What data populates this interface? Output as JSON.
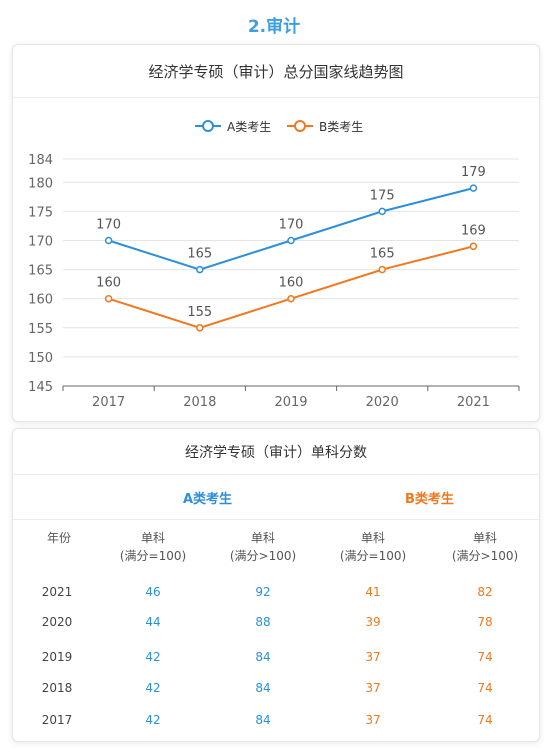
{
  "section_title": "2.审计",
  "chart_data": {
    "type": "line",
    "title": "经济学专硕（审计）总分国家线趋势图",
    "categories": [
      "2017",
      "2018",
      "2019",
      "2020",
      "2021"
    ],
    "series": [
      {
        "name": "A类考生",
        "values": [
          170,
          165,
          170,
          175,
          179
        ],
        "color": "#2d8fd9"
      },
      {
        "name": "B类考生",
        "values": [
          160,
          155,
          160,
          165,
          169
        ],
        "color": "#f0781e"
      }
    ],
    "yticks": [
      145,
      150,
      155,
      160,
      165,
      170,
      175,
      180,
      184
    ],
    "ylim": [
      145,
      184
    ],
    "legend_position": "top-center",
    "grid": true
  },
  "table": {
    "title": "经济学专硕（审计）单科分数",
    "group_a": "A类考生",
    "group_b": "B类考生",
    "year_header": "年份",
    "subject_label": "单科",
    "full_100": "(满分=100)",
    "full_over_100": "(满分>100)",
    "rows": [
      {
        "year": "2021",
        "a1": "46",
        "a2": "92",
        "b1": "41",
        "b2": "82"
      },
      {
        "year": "2020",
        "a1": "44",
        "a2": "88",
        "b1": "39",
        "b2": "78"
      },
      {
        "year": "2019",
        "a1": "42",
        "a2": "84",
        "b1": "37",
        "b2": "74"
      },
      {
        "year": "2018",
        "a1": "42",
        "a2": "84",
        "b1": "37",
        "b2": "74"
      },
      {
        "year": "2017",
        "a1": "42",
        "a2": "84",
        "b1": "37",
        "b2": "74"
      }
    ]
  }
}
